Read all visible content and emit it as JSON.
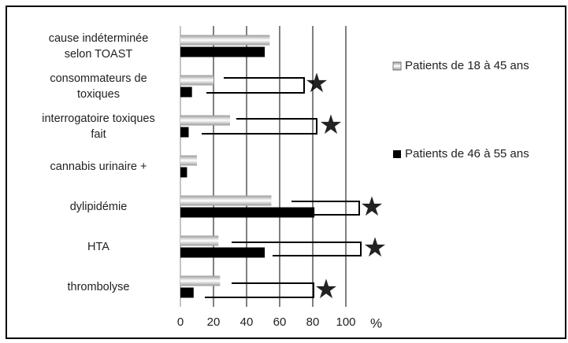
{
  "chart_data": {
    "type": "bar",
    "orientation": "horizontal",
    "categories": [
      "cause indéterminée\nselon TOAST",
      "consommateurs de\ntoxiques",
      "interrogatoire toxiques\nfait",
      "cannabis urinaire +",
      "dylipidémie",
      "HTA",
      "thrombolyse"
    ],
    "series": [
      {
        "name": "Patients de 18 à 45 ans",
        "color": "#9a9a9a",
        "values": [
          54,
          20,
          30,
          10,
          55,
          23,
          24
        ]
      },
      {
        "name": "Patients de 46 à 55 ans",
        "color": "#000000",
        "values": [
          51,
          7,
          5,
          4,
          81,
          51,
          8
        ]
      }
    ],
    "xlabel": "%",
    "xlim": [
      0,
      110
    ],
    "xticks": [
      0,
      20,
      40,
      60,
      80,
      100
    ],
    "grid": true,
    "legend": "right"
  }
}
